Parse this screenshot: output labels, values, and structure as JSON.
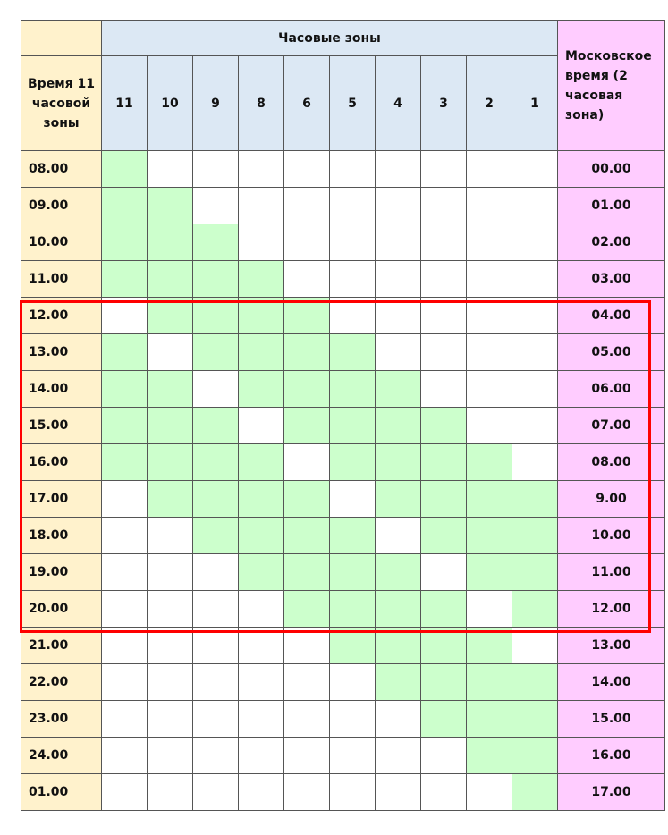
{
  "header": {
    "time_col_label": "Время 11 часовой зоны",
    "zones_group_label": "Часовые зоны",
    "moscow_col_label": "Московское время (2 часовая зона)",
    "zones": [
      "11",
      "10",
      "9",
      "8",
      "6",
      "5",
      "4",
      "3",
      "2",
      "1"
    ]
  },
  "colors": {
    "time_col": "#fff2cc",
    "header": "#dce8f4",
    "active": "#ccffcc",
    "moscow_col": "#ffccff",
    "highlight": "#ff0000"
  },
  "rows": [
    {
      "time": "08.00",
      "moscow": "00.00",
      "active": [
        "11"
      ]
    },
    {
      "time": "09.00",
      "moscow": "01.00",
      "active": [
        "11",
        "10"
      ]
    },
    {
      "time": "10.00",
      "moscow": "02.00",
      "active": [
        "11",
        "10",
        "9"
      ]
    },
    {
      "time": "11.00",
      "moscow": "03.00",
      "active": [
        "11",
        "10",
        "9",
        "8"
      ]
    },
    {
      "time": "12.00",
      "moscow": "04.00",
      "active": [
        "10",
        "9",
        "8",
        "6"
      ]
    },
    {
      "time": "13.00",
      "moscow": "05.00",
      "active": [
        "11",
        "9",
        "8",
        "6",
        "5"
      ]
    },
    {
      "time": "14.00",
      "moscow": "06.00",
      "active": [
        "11",
        "10",
        "8",
        "6",
        "5",
        "4"
      ]
    },
    {
      "time": "15.00",
      "moscow": "07.00",
      "active": [
        "11",
        "10",
        "9",
        "6",
        "5",
        "4",
        "3"
      ]
    },
    {
      "time": "16.00",
      "moscow": "08.00",
      "active": [
        "11",
        "10",
        "9",
        "8",
        "5",
        "4",
        "3",
        "2"
      ]
    },
    {
      "time": "17.00",
      "moscow": "9.00",
      "active": [
        "10",
        "9",
        "8",
        "6",
        "4",
        "3",
        "2",
        "1"
      ]
    },
    {
      "time": "18.00",
      "moscow": "10.00",
      "active": [
        "9",
        "8",
        "6",
        "5",
        "3",
        "2",
        "1"
      ]
    },
    {
      "time": "19.00",
      "moscow": "11.00",
      "active": [
        "8",
        "6",
        "5",
        "4",
        "2",
        "1"
      ]
    },
    {
      "time": "20.00",
      "moscow": "12.00",
      "active": [
        "6",
        "5",
        "4",
        "3",
        "1"
      ]
    },
    {
      "time": "21.00",
      "moscow": "13.00",
      "active": [
        "5",
        "4",
        "3",
        "2"
      ]
    },
    {
      "time": "22.00",
      "moscow": "14.00",
      "active": [
        "4",
        "3",
        "2",
        "1"
      ]
    },
    {
      "time": "23.00",
      "moscow": "15.00",
      "active": [
        "3",
        "2",
        "1"
      ]
    },
    {
      "time": "24.00",
      "moscow": "16.00",
      "active": [
        "2",
        "1"
      ]
    },
    {
      "time": "01.00",
      "moscow": "17.00",
      "active": [
        "1"
      ]
    }
  ],
  "highlight_rows": [
    "12.00",
    "20.00"
  ]
}
